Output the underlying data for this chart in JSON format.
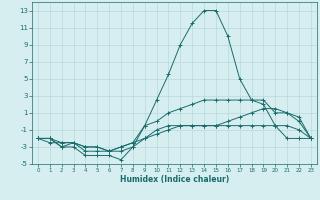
{
  "title": "",
  "xlabel": "Humidex (Indice chaleur)",
  "background_color": "#d6eef0",
  "grid_color": "#b8d8dc",
  "line_color": "#1a6b6b",
  "xlim": [
    -0.5,
    23.5
  ],
  "ylim": [
    -5,
    14
  ],
  "xticks": [
    0,
    1,
    2,
    3,
    4,
    5,
    6,
    7,
    8,
    9,
    10,
    11,
    12,
    13,
    14,
    15,
    16,
    17,
    18,
    19,
    20,
    21,
    22,
    23
  ],
  "yticks": [
    -5,
    -3,
    -1,
    1,
    3,
    5,
    7,
    9,
    11,
    13
  ],
  "series": [
    {
      "x": [
        0,
        1,
        2,
        3,
        4,
        5,
        6,
        7,
        8,
        9,
        10,
        11,
        12,
        13,
        14,
        15,
        16,
        17,
        18,
        19,
        20,
        21,
        22,
        23
      ],
      "y": [
        -2,
        -2,
        -3,
        -3,
        -4,
        -4,
        -4,
        -4.5,
        -3,
        -0.5,
        2.5,
        5.5,
        9,
        11.5,
        13,
        13,
        10,
        5,
        2.5,
        2,
        -0.5,
        -2,
        -2,
        -2
      ]
    },
    {
      "x": [
        0,
        1,
        2,
        3,
        4,
        5,
        6,
        7,
        8,
        9,
        10,
        11,
        12,
        13,
        14,
        15,
        16,
        17,
        18,
        19,
        20,
        21,
        22,
        23
      ],
      "y": [
        -2,
        -2,
        -3,
        -2.5,
        -3.5,
        -3.5,
        -3.5,
        -3,
        -2.5,
        -0.5,
        0,
        1,
        1.5,
        2,
        2.5,
        2.5,
        2.5,
        2.5,
        2.5,
        2.5,
        1,
        1,
        0,
        -2
      ]
    },
    {
      "x": [
        0,
        1,
        2,
        3,
        4,
        5,
        6,
        7,
        8,
        9,
        10,
        11,
        12,
        13,
        14,
        15,
        16,
        17,
        18,
        19,
        20,
        21,
        22,
        23
      ],
      "y": [
        -2,
        -2,
        -2.5,
        -2.5,
        -3,
        -3,
        -3.5,
        -3.5,
        -3,
        -2,
        -1,
        -0.5,
        -0.5,
        -0.5,
        -0.5,
        -0.5,
        0,
        0.5,
        1,
        1.5,
        1.5,
        1,
        0.5,
        -2
      ]
    },
    {
      "x": [
        0,
        1,
        2,
        3,
        4,
        5,
        6,
        7,
        8,
        9,
        10,
        11,
        12,
        13,
        14,
        15,
        16,
        17,
        18,
        19,
        20,
        21,
        22,
        23
      ],
      "y": [
        -2,
        -2.5,
        -2.5,
        -2.5,
        -3,
        -3,
        -3.5,
        -3,
        -2.5,
        -2,
        -1.5,
        -1,
        -0.5,
        -0.5,
        -0.5,
        -0.5,
        -0.5,
        -0.5,
        -0.5,
        -0.5,
        -0.5,
        -0.5,
        -1,
        -2
      ]
    }
  ]
}
